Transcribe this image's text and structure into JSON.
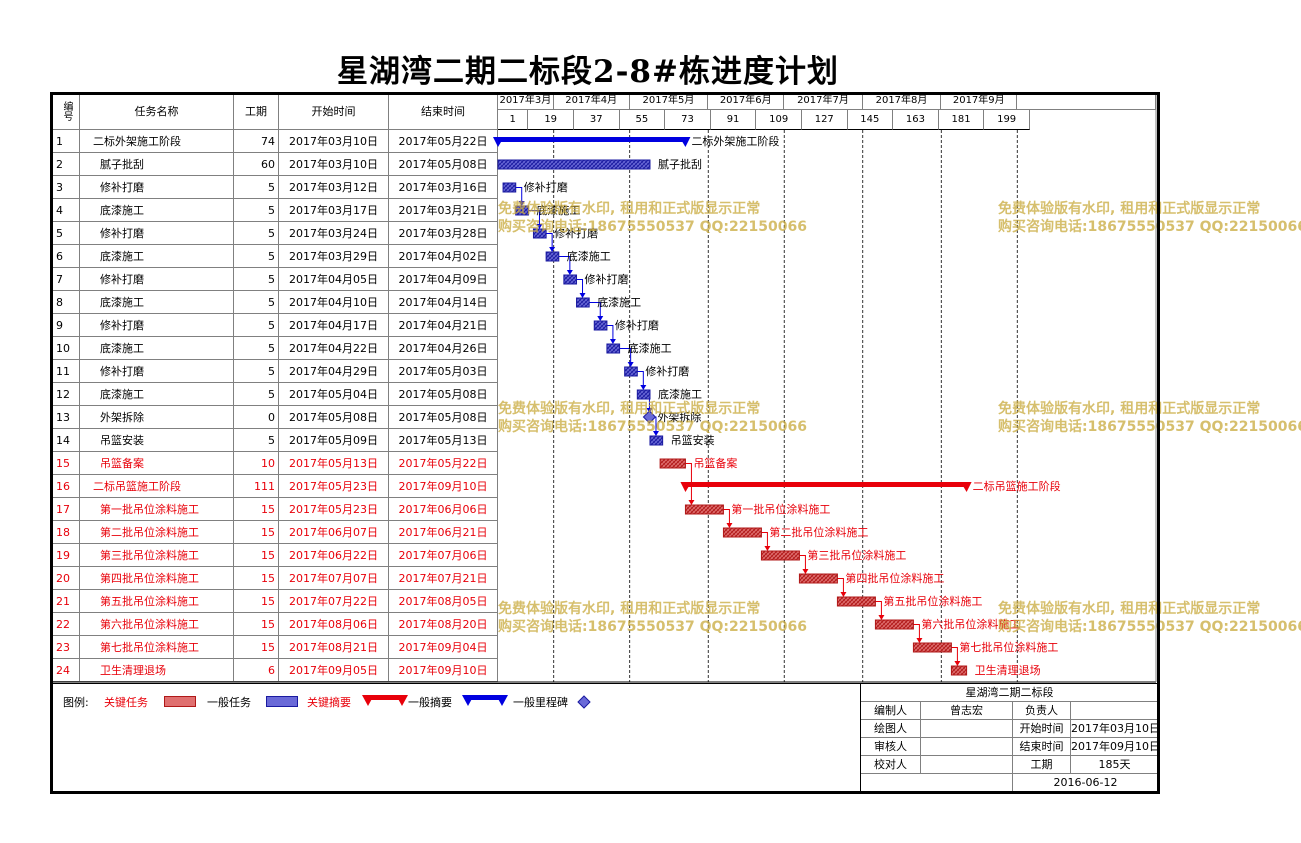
{
  "title": "星湖湾二期二标段2-8#栋进度计划",
  "columns": {
    "id": "编号",
    "name": "任务名称",
    "duration": "工期",
    "start": "开始时间",
    "end": "结束时间"
  },
  "chart_data": {
    "type": "gantt",
    "title": "星湖湾二期二标段2-8#栋进度计划",
    "x_start_date": "2017-03-10",
    "months": [
      "2017年3月",
      "2017年4月",
      "2017年5月",
      "2017年6月",
      "2017年7月",
      "2017年8月",
      "2017年9月"
    ],
    "day_ticks": [
      "1",
      "19",
      "37",
      "55",
      "73",
      "91",
      "109",
      "127",
      "145",
      "163",
      "181",
      "199"
    ],
    "tasks": [
      {
        "id": "1",
        "name": "二标外架施工阶段",
        "duration": "74",
        "start": "2017年03月10日",
        "end": "2017年05月22日",
        "kind": "summary",
        "critical": false
      },
      {
        "id": "2",
        "name": "腻子批刮",
        "duration": "60",
        "start": "2017年03月10日",
        "end": "2017年05月08日",
        "kind": "task",
        "critical": false
      },
      {
        "id": "3",
        "name": "修补打磨",
        "duration": "5",
        "start": "2017年03月12日",
        "end": "2017年03月16日",
        "kind": "task",
        "critical": false
      },
      {
        "id": "4",
        "name": "底漆施工",
        "duration": "5",
        "start": "2017年03月17日",
        "end": "2017年03月21日",
        "kind": "task",
        "critical": false
      },
      {
        "id": "5",
        "name": "修补打磨",
        "duration": "5",
        "start": "2017年03月24日",
        "end": "2017年03月28日",
        "kind": "task",
        "critical": false
      },
      {
        "id": "6",
        "name": "底漆施工",
        "duration": "5",
        "start": "2017年03月29日",
        "end": "2017年04月02日",
        "kind": "task",
        "critical": false
      },
      {
        "id": "7",
        "name": "修补打磨",
        "duration": "5",
        "start": "2017年04月05日",
        "end": "2017年04月09日",
        "kind": "task",
        "critical": false
      },
      {
        "id": "8",
        "name": "底漆施工",
        "duration": "5",
        "start": "2017年04月10日",
        "end": "2017年04月14日",
        "kind": "task",
        "critical": false
      },
      {
        "id": "9",
        "name": "修补打磨",
        "duration": "5",
        "start": "2017年04月17日",
        "end": "2017年04月21日",
        "kind": "task",
        "critical": false
      },
      {
        "id": "10",
        "name": "底漆施工",
        "duration": "5",
        "start": "2017年04月22日",
        "end": "2017年04月26日",
        "kind": "task",
        "critical": false
      },
      {
        "id": "11",
        "name": "修补打磨",
        "duration": "5",
        "start": "2017年04月29日",
        "end": "2017年05月03日",
        "kind": "task",
        "critical": false
      },
      {
        "id": "12",
        "name": "底漆施工",
        "duration": "5",
        "start": "2017年05月04日",
        "end": "2017年05月08日",
        "kind": "task",
        "critical": false
      },
      {
        "id": "13",
        "name": "外架拆除",
        "duration": "0",
        "start": "2017年05月08日",
        "end": "2017年05月08日",
        "kind": "milestone",
        "critical": false
      },
      {
        "id": "14",
        "name": "吊篮安装",
        "duration": "5",
        "start": "2017年05月09日",
        "end": "2017年05月13日",
        "kind": "task",
        "critical": false
      },
      {
        "id": "15",
        "name": "吊篮备案",
        "duration": "10",
        "start": "2017年05月13日",
        "end": "2017年05月22日",
        "kind": "task",
        "critical": true
      },
      {
        "id": "16",
        "name": "二标吊篮施工阶段",
        "duration": "111",
        "start": "2017年05月23日",
        "end": "2017年09月10日",
        "kind": "summary",
        "critical": true
      },
      {
        "id": "17",
        "name": "第一批吊位涂料施工",
        "duration": "15",
        "start": "2017年05月23日",
        "end": "2017年06月06日",
        "kind": "task",
        "critical": true
      },
      {
        "id": "18",
        "name": "第二批吊位涂料施工",
        "duration": "15",
        "start": "2017年06月07日",
        "end": "2017年06月21日",
        "kind": "task",
        "critical": true
      },
      {
        "id": "19",
        "name": "第三批吊位涂料施工",
        "duration": "15",
        "start": "2017年06月22日",
        "end": "2017年07月06日",
        "kind": "task",
        "critical": true
      },
      {
        "id": "20",
        "name": "第四批吊位涂料施工",
        "duration": "15",
        "start": "2017年07月07日",
        "end": "2017年07月21日",
        "kind": "task",
        "critical": true
      },
      {
        "id": "21",
        "name": "第五批吊位涂料施工",
        "duration": "15",
        "start": "2017年07月22日",
        "end": "2017年08月05日",
        "kind": "task",
        "critical": true
      },
      {
        "id": "22",
        "name": "第六批吊位涂料施工",
        "duration": "15",
        "start": "2017年08月06日",
        "end": "2017年08月20日",
        "kind": "task",
        "critical": true
      },
      {
        "id": "23",
        "name": "第七批吊位涂料施工",
        "duration": "15",
        "start": "2017年08月21日",
        "end": "2017年09月04日",
        "kind": "task",
        "critical": true
      },
      {
        "id": "24",
        "name": "卫生清理退场",
        "duration": "6",
        "start": "2017年09月05日",
        "end": "2017年09月10日",
        "kind": "task",
        "critical": true
      }
    ],
    "colors": {
      "critical": "#e8000a",
      "normal": "#0000e0",
      "critical_fill": "#d05050",
      "normal_fill": "#5050c0"
    }
  },
  "legend": {
    "title": "图例:",
    "items": [
      "关键任务",
      "一般任务",
      "关键摘要",
      "一般摘要",
      "一般里程碑"
    ]
  },
  "signoff": {
    "project": "星湖湾二期二标段",
    "compiler_label": "编制人",
    "compiler": "曾志宏",
    "owner_label": "负责人",
    "owner": "",
    "drawer_label": "绘图人",
    "start_label": "开始时间",
    "start": "2017年03月10日",
    "reviewer_label": "审核人",
    "end_label": "结束时间",
    "end": "2017年09月10日",
    "checker_label": "校对人",
    "duration_label": "工期",
    "duration": "185天",
    "date": "2016-06-12"
  },
  "watermark": {
    "line1": "免费体验版有水印, 租用和正式版显示正常",
    "line2": "购买咨询电话:18675550537 QQ:22150066"
  }
}
